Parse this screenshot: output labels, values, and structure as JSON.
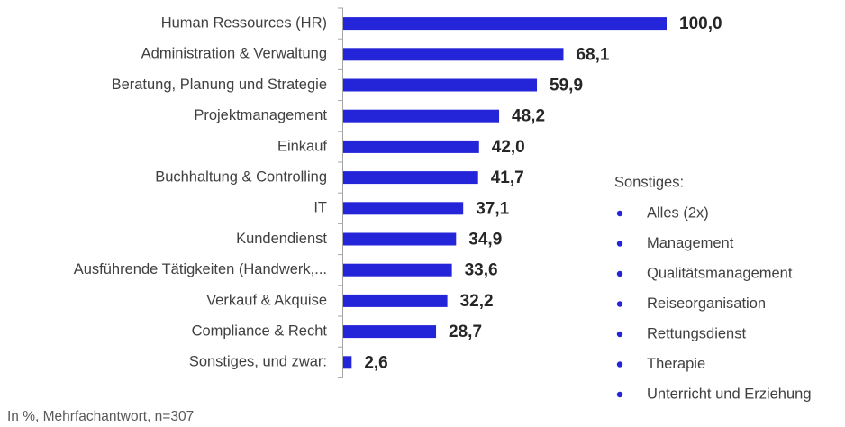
{
  "chart_data": {
    "type": "bar",
    "orientation": "horizontal",
    "color": "#2424d8",
    "categories": [
      "Human Ressources (HR)",
      "Administration & Verwaltung",
      "Beratung, Planung und Strategie",
      "Projektmanagement",
      "Einkauf",
      "Buchhaltung & Controlling",
      "IT",
      "Kundendienst",
      "Ausführende Tätigkeiten (Handwerk,...",
      "Verkauf & Akquise",
      "Compliance & Recht",
      "Sonstiges, und zwar:"
    ],
    "values": [
      100.0,
      68.1,
      59.9,
      48.2,
      42.0,
      41.7,
      37.1,
      34.9,
      33.6,
      32.2,
      28.7,
      2.6
    ],
    "value_labels": [
      "100,0",
      "68,1",
      "59,9",
      "48,2",
      "42,0",
      "41,7",
      "37,1",
      "34,9",
      "33,6",
      "32,2",
      "28,7",
      "2,6"
    ],
    "note": "In %, Mehrfachantwort,   n=307"
  },
  "side_list": {
    "title": "Sonstiges:",
    "items": [
      "Alles (2x)",
      "Management",
      "Qualitätsmanagement",
      "Reiseorganisation",
      "Rettungsdienst",
      "Therapie",
      "Unterricht und  Erziehung"
    ]
  }
}
